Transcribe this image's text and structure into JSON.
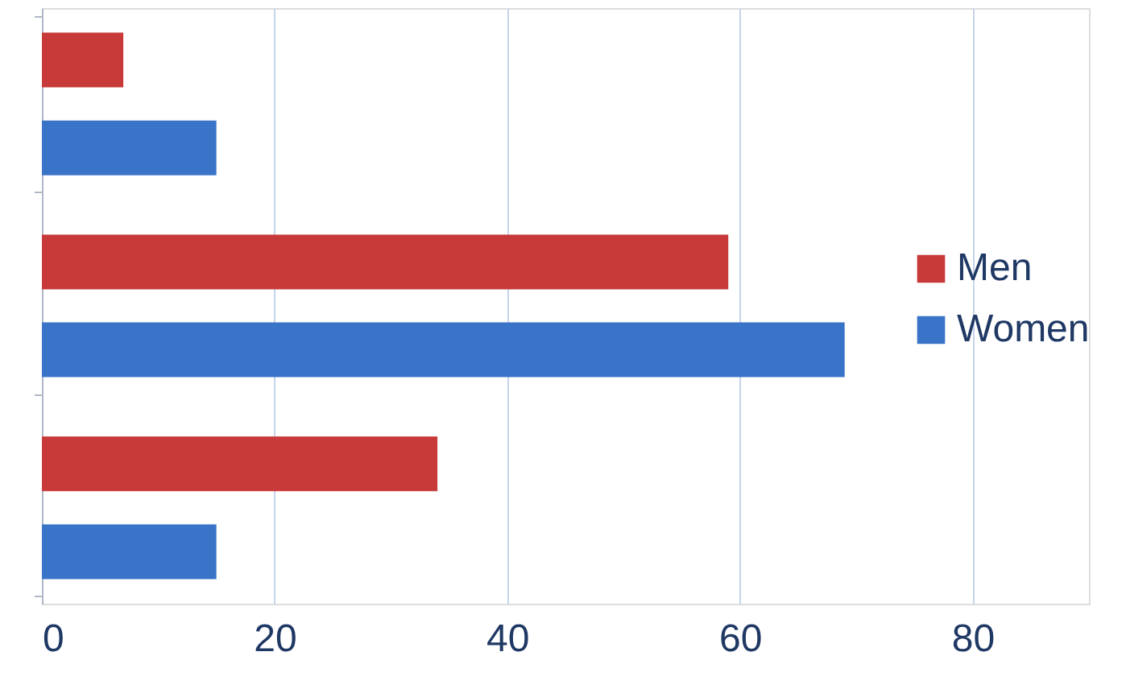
{
  "chart_data": {
    "type": "bar",
    "orientation": "horizontal",
    "categories": [
      null,
      null,
      null
    ],
    "series": [
      {
        "name": "Men",
        "color": "#c83a3a",
        "values": [
          7,
          59,
          34
        ]
      },
      {
        "name": "Women",
        "color": "#3a74c8",
        "values": [
          15,
          69,
          15
        ]
      }
    ],
    "xlim": [
      0,
      90
    ],
    "xticks": [
      0,
      20,
      40,
      60,
      80
    ],
    "grid": "x",
    "legend": "right",
    "tick_labels": "x"
  }
}
